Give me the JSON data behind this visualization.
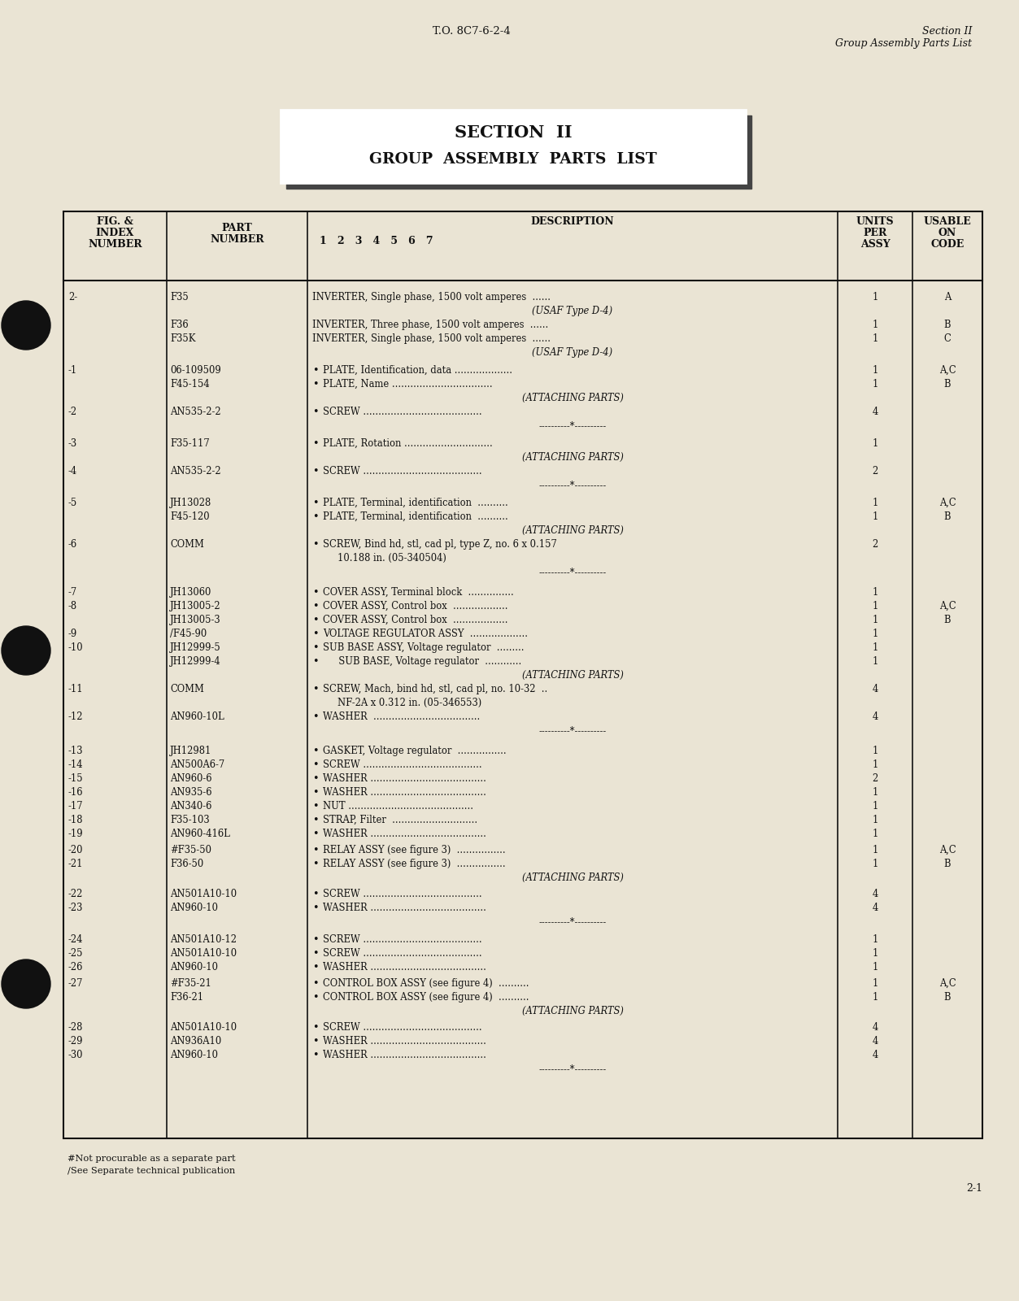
{
  "bg_color": "#eae4d4",
  "top_ref": "T.O. 8C7-6-2-4",
  "top_right_line1": "Section II",
  "top_right_line2": "Group Assembly Parts List",
  "section_title_line1": "SECTION  II",
  "section_title_line2": "GROUP  ASSEMBLY  PARTS  LIST",
  "rows": [
    {
      "fig": "2-",
      "part": "F35",
      "desc": "INVERTER, Single phase, 1500 volt amperes  ......",
      "desc2": "(USAF Type D-4)",
      "qty": "1",
      "code": "A",
      "bullet": false,
      "indent": 0
    },
    {
      "fig": "",
      "part": "F36",
      "desc": "INVERTER, Three phase, 1500 volt amperes  ......",
      "desc2": "",
      "qty": "1",
      "code": "B",
      "bullet": false,
      "indent": 0
    },
    {
      "fig": "",
      "part": "F35K",
      "desc": "INVERTER, Single phase, 1500 volt amperes  ......",
      "desc2": "(USAF Type D-4)",
      "qty": "1",
      "code": "C",
      "bullet": false,
      "indent": 0
    },
    {
      "fig": "-1",
      "part": "06-109509",
      "desc": "PLATE, Identification, data ...................",
      "desc2": "",
      "qty": "1",
      "code": "A,C",
      "bullet": true,
      "indent": 1
    },
    {
      "fig": "",
      "part": "F45-154",
      "desc": "PLATE, Name .................................",
      "desc2": "(ATTACHING PARTS)",
      "qty": "1",
      "code": "B",
      "bullet": true,
      "indent": 1
    },
    {
      "fig": "-2",
      "part": "AN535-2-2",
      "desc": "SCREW .......................................",
      "desc2": "----------*----------",
      "qty": "4",
      "code": "",
      "bullet": true,
      "indent": 1
    },
    {
      "fig": "-3",
      "part": "F35-117",
      "desc": "PLATE, Rotation .............................",
      "desc2": "(ATTACHING PARTS)",
      "qty": "1",
      "code": "",
      "bullet": true,
      "indent": 1
    },
    {
      "fig": "-4",
      "part": "AN535-2-2",
      "desc": "SCREW .......................................",
      "desc2": "----------*----------",
      "qty": "2",
      "code": "",
      "bullet": true,
      "indent": 1
    },
    {
      "fig": "-5",
      "part": "JH13028",
      "desc": "PLATE, Terminal, identification  ..........",
      "desc2": "",
      "qty": "1",
      "code": "A,C",
      "bullet": true,
      "indent": 1
    },
    {
      "fig": "",
      "part": "F45-120",
      "desc": "PLATE, Terminal, identification  ..........",
      "desc2": "(ATTACHING PARTS)",
      "qty": "1",
      "code": "B",
      "bullet": true,
      "indent": 1
    },
    {
      "fig": "-6",
      "part": "COMM",
      "desc": "SCREW, Bind hd, stl, cad pl, type Z, no. 6 x 0.157",
      "desc2": "10.188 in. (05-340504)",
      "qty": "2",
      "code": "",
      "bullet": true,
      "indent": 1
    },
    {
      "fig": "",
      "part": "",
      "desc": "----------*----------",
      "desc2": "",
      "qty": "",
      "code": "",
      "bullet": false,
      "indent": 0
    },
    {
      "fig": "-7",
      "part": "JH13060",
      "desc": "COVER ASSY, Terminal block  ...............",
      "desc2": "",
      "qty": "1",
      "code": "",
      "bullet": true,
      "indent": 1
    },
    {
      "fig": "-8",
      "part": "JH13005-2",
      "desc": "COVER ASSY, Control box  ..................",
      "desc2": "",
      "qty": "1",
      "code": "A,C",
      "bullet": true,
      "indent": 1
    },
    {
      "fig": "",
      "part": "JH13005-3",
      "desc": "COVER ASSY, Control box  ..................",
      "desc2": "",
      "qty": "1",
      "code": "B",
      "bullet": true,
      "indent": 1
    },
    {
      "fig": "-9",
      "part": "/F45-90",
      "desc": "VOLTAGE REGULATOR ASSY  ...................",
      "desc2": "",
      "qty": "1",
      "code": "",
      "bullet": true,
      "indent": 1
    },
    {
      "fig": "-10",
      "part": "JH12999-5",
      "desc": "SUB BASE ASSY, Voltage regulator  .........",
      "desc2": "",
      "qty": "1",
      "code": "",
      "bullet": true,
      "indent": 1
    },
    {
      "fig": "",
      "part": "JH12999-4",
      "desc": "  SUB BASE, Voltage regulator  ............",
      "desc2": "(ATTACHING PARTS)",
      "qty": "1",
      "code": "",
      "bullet": true,
      "indent": 2
    },
    {
      "fig": "-11",
      "part": "COMM",
      "desc": "SCREW, Mach, bind hd, stl, cad pl, no. 10-32  ..",
      "desc2": "NF-2A x 0.312 in. (05-346553)",
      "qty": "4",
      "code": "",
      "bullet": true,
      "indent": 1
    },
    {
      "fig": "-12",
      "part": "AN960-10L",
      "desc": "WASHER  ...................................",
      "desc2": "----------*----------",
      "qty": "4",
      "code": "",
      "bullet": true,
      "indent": 1
    },
    {
      "fig": "-13",
      "part": "JH12981",
      "desc": "GASKET, Voltage regulator  ................",
      "desc2": "",
      "qty": "1",
      "code": "",
      "bullet": true,
      "indent": 1
    },
    {
      "fig": "-14",
      "part": "AN500A6-7",
      "desc": "SCREW .......................................",
      "desc2": "",
      "qty": "1",
      "code": "",
      "bullet": true,
      "indent": 1
    },
    {
      "fig": "-15",
      "part": "AN960-6",
      "desc": "WASHER ......................................",
      "desc2": "",
      "qty": "2",
      "code": "",
      "bullet": true,
      "indent": 1
    },
    {
      "fig": "-16",
      "part": "AN935-6",
      "desc": "WASHER ......................................",
      "desc2": "",
      "qty": "1",
      "code": "",
      "bullet": true,
      "indent": 1
    },
    {
      "fig": "-17",
      "part": "AN340-6",
      "desc": "NUT .........................................",
      "desc2": "",
      "qty": "1",
      "code": "",
      "bullet": true,
      "indent": 1
    },
    {
      "fig": "-18",
      "part": "F35-103",
      "desc": "STRAP, Filter  ............................",
      "desc2": "",
      "qty": "1",
      "code": "",
      "bullet": true,
      "indent": 1
    },
    {
      "fig": "-19",
      "part": "AN960-416L",
      "desc": "WASHER ......................................",
      "desc2": "",
      "qty": "1",
      "code": "",
      "bullet": true,
      "indent": 1
    },
    {
      "fig": "-20",
      "part": "#F35-50",
      "desc": "RELAY ASSY (see figure 3)  ................",
      "desc2": "",
      "qty": "1",
      "code": "A,C",
      "bullet": true,
      "indent": 1
    },
    {
      "fig": "-21",
      "part": "F36-50",
      "desc": "RELAY ASSY (see figure 3)  ................",
      "desc2": "(ATTACHING PARTS)",
      "qty": "1",
      "code": "B",
      "bullet": true,
      "indent": 1
    },
    {
      "fig": "-22",
      "part": "AN501A10-10",
      "desc": "SCREW .......................................",
      "desc2": "",
      "qty": "4",
      "code": "",
      "bullet": true,
      "indent": 1
    },
    {
      "fig": "-23",
      "part": "AN960-10",
      "desc": "WASHER ......................................",
      "desc2": "----------*----------",
      "qty": "4",
      "code": "",
      "bullet": true,
      "indent": 1
    },
    {
      "fig": "-24",
      "part": "AN501A10-12",
      "desc": "SCREW .......................................",
      "desc2": "",
      "qty": "1",
      "code": "",
      "bullet": true,
      "indent": 1
    },
    {
      "fig": "-25",
      "part": "AN501A10-10",
      "desc": "SCREW .......................................",
      "desc2": "",
      "qty": "1",
      "code": "",
      "bullet": true,
      "indent": 1
    },
    {
      "fig": "-26",
      "part": "AN960-10",
      "desc": "WASHER ......................................",
      "desc2": "",
      "qty": "1",
      "code": "",
      "bullet": true,
      "indent": 1
    },
    {
      "fig": "-27",
      "part": "#F35-21",
      "desc": "CONTROL BOX ASSY (see figure 4)  ..........",
      "desc2": "",
      "qty": "1",
      "code": "A,C",
      "bullet": true,
      "indent": 1
    },
    {
      "fig": "",
      "part": "F36-21",
      "desc": "CONTROL BOX ASSY (see figure 4)  ..........",
      "desc2": "(ATTACHING PARTS)",
      "qty": "1",
      "code": "B",
      "bullet": true,
      "indent": 1
    },
    {
      "fig": "-28",
      "part": "AN501A10-10",
      "desc": "SCREW .......................................",
      "desc2": "",
      "qty": "4",
      "code": "",
      "bullet": true,
      "indent": 1
    },
    {
      "fig": "-29",
      "part": "AN936A10",
      "desc": "WASHER ......................................",
      "desc2": "",
      "qty": "4",
      "code": "",
      "bullet": true,
      "indent": 1
    },
    {
      "fig": "-30",
      "part": "AN960-10",
      "desc": "WASHER ......................................",
      "desc2": "----------*----------",
      "qty": "4",
      "code": "",
      "bullet": true,
      "indent": 1
    }
  ],
  "footnotes": [
    "#Not procurable as a separate part",
    "/See Separate technical publication"
  ],
  "page_num": "2-1"
}
